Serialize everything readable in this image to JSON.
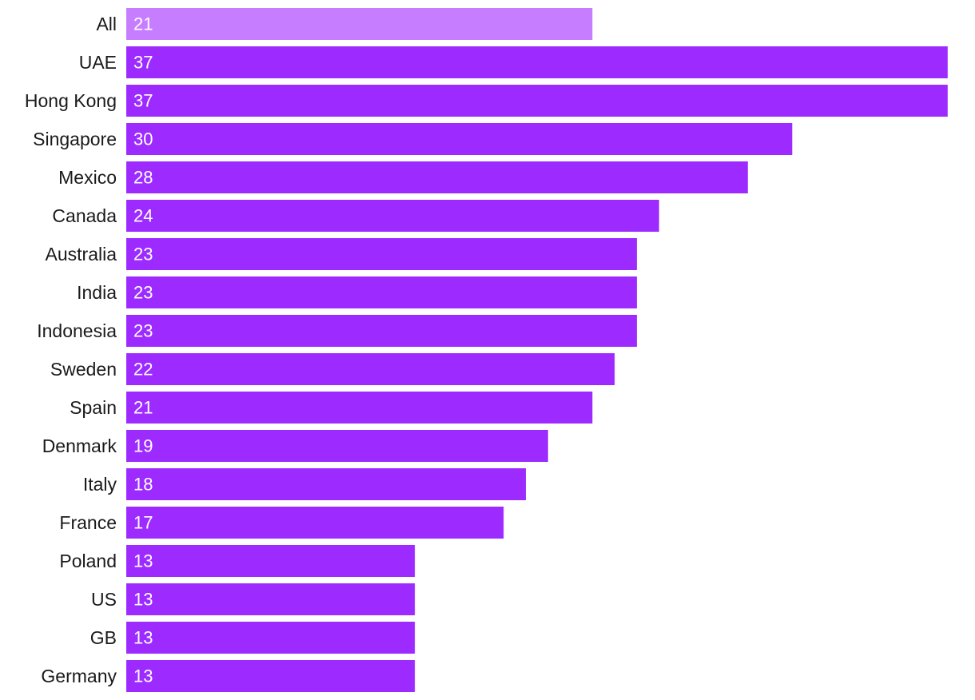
{
  "chart_data": {
    "type": "bar",
    "orientation": "horizontal",
    "title": "",
    "xlabel": "",
    "ylabel": "",
    "grid": false,
    "categories": [
      "All",
      "UAE",
      "Hong Kong",
      "Singapore",
      "Mexico",
      "Canada",
      "Australia",
      "India",
      "Indonesia",
      "Sweden",
      "Spain",
      "Denmark",
      "Italy",
      "France",
      "Poland",
      "US",
      "GB",
      "Germany"
    ],
    "values": [
      21,
      37,
      37,
      30,
      28,
      24,
      23,
      23,
      23,
      22,
      21,
      19,
      18,
      17,
      13,
      13,
      13,
      13
    ],
    "value_labels": [
      "21",
      "37",
      "37",
      "30",
      "28",
      "24",
      "23",
      "23",
      "23",
      "22",
      "21",
      "19",
      "18",
      "17",
      "13",
      "13",
      "13",
      "13"
    ],
    "xlim": [
      0,
      37.8
    ],
    "colors": {
      "highlight": "#c77dff",
      "bar": "#9d2bff"
    },
    "highlighted_categories": [
      "All"
    ]
  }
}
